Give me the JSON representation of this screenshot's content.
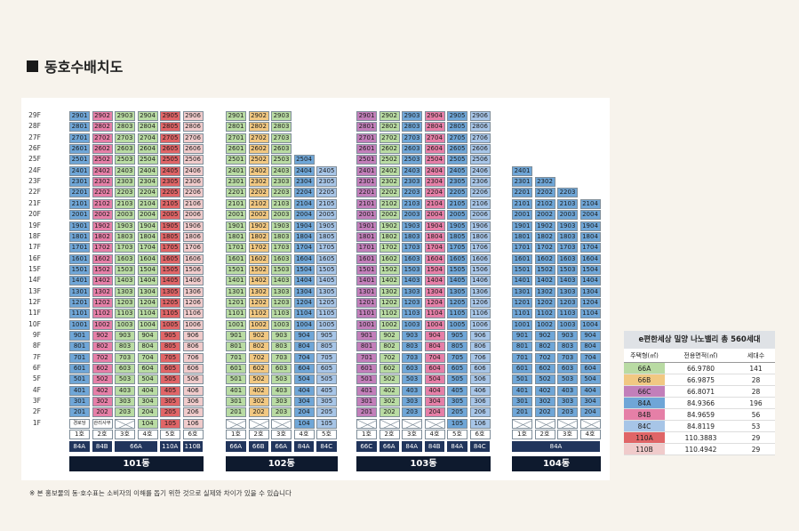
{
  "page_title": "동호수배치도",
  "footnote": "※ 본 홍보물의 동·호수표는 소비자의 이해를 돕기 위한 것으로 실제와 차이가 있을 수 있습니다",
  "colors": {
    "66A": "#b9dba3",
    "66B": "#f1c882",
    "66C": "#c27fba",
    "84A": "#6fa6d7",
    "84B": "#e57fa7",
    "84C": "#a7c5e7",
    "110A": "#e06567",
    "110B": "#f0cbcb"
  },
  "floor_labels": [
    "29F",
    "28F",
    "27F",
    "26F",
    "25F",
    "24F",
    "23F",
    "22F",
    "21F",
    "20F",
    "19F",
    "18F",
    "17F",
    "16F",
    "15F",
    "14F",
    "13F",
    "12F",
    "11F",
    "10F",
    "9F",
    "8F",
    "7F",
    "6F",
    "5F",
    "4F",
    "3F",
    "2F",
    "1F"
  ],
  "buildings": [
    {
      "name": "101동",
      "ho_labels": [
        "1호",
        "2호",
        "3호",
        "4호",
        "5호",
        "6호"
      ],
      "column_types": [
        "84A",
        "84B",
        "66A",
        "66A",
        "110A",
        "110B"
      ],
      "type_row": [
        {
          "label": "84A",
          "span": 1
        },
        {
          "label": "84B",
          "span": 1
        },
        {
          "label": "66A",
          "span": 2
        },
        {
          "label": "110A",
          "span": 1
        },
        {
          "label": "110B",
          "span": 1
        }
      ],
      "top_floors": [
        29,
        29,
        29,
        29,
        29,
        29
      ],
      "first_floor": [
        {
          "kind": "text",
          "value": "경로당"
        },
        {
          "kind": "text",
          "value": "관리사무소"
        },
        {
          "kind": "cross"
        },
        {
          "kind": "unit",
          "value": "104"
        },
        {
          "kind": "unit",
          "value": "105"
        },
        {
          "kind": "unit",
          "value": "106"
        }
      ]
    },
    {
      "name": "102동",
      "ho_labels": [
        "1호",
        "2호",
        "3호",
        "4호",
        "5호"
      ],
      "column_types": [
        "66A",
        "66B",
        "66A",
        "84A",
        "84C"
      ],
      "type_row": [
        {
          "label": "66A",
          "span": 1
        },
        {
          "label": "66B",
          "span": 1
        },
        {
          "label": "66A",
          "span": 1
        },
        {
          "label": "84A",
          "span": 1
        },
        {
          "label": "84C",
          "span": 1
        }
      ],
      "top_floors": [
        29,
        29,
        29,
        25,
        24
      ],
      "first_floor": [
        {
          "kind": "cross"
        },
        {
          "kind": "cross"
        },
        {
          "kind": "cross"
        },
        {
          "kind": "unit",
          "value": "104"
        },
        {
          "kind": "unit",
          "value": "105"
        }
      ]
    },
    {
      "name": "103동",
      "ho_labels": [
        "1호",
        "2호",
        "3호",
        "4호",
        "5호",
        "6호"
      ],
      "column_types": [
        "66C",
        "66A",
        "84A",
        "84B",
        "84A",
        "84C"
      ],
      "type_row": [
        {
          "label": "66C",
          "span": 1
        },
        {
          "label": "66A",
          "span": 1
        },
        {
          "label": "84A",
          "span": 1
        },
        {
          "label": "84B",
          "span": 1
        },
        {
          "label": "84A",
          "span": 1
        },
        {
          "label": "84C",
          "span": 1
        }
      ],
      "top_floors": [
        29,
        29,
        29,
        29,
        29,
        29
      ],
      "first_floor": [
        {
          "kind": "cross"
        },
        {
          "kind": "cross"
        },
        {
          "kind": "cross"
        },
        {
          "kind": "cross"
        },
        {
          "kind": "unit",
          "value": "105"
        },
        {
          "kind": "unit",
          "value": "106"
        }
      ]
    },
    {
      "name": "104동",
      "ho_labels": [
        "1호",
        "2호",
        "3호",
        "4호"
      ],
      "column_types": [
        "84A",
        "84A",
        "84A",
        "84A"
      ],
      "type_row": [
        {
          "label": "84A",
          "span": 4
        }
      ],
      "top_floors": [
        24,
        23,
        22,
        21
      ],
      "first_floor": [
        {
          "kind": "cross"
        },
        {
          "kind": "cross"
        },
        {
          "kind": "cross"
        },
        {
          "kind": "cross"
        }
      ]
    }
  ],
  "legend": {
    "title": "e편한세상 밀양 나노밸리  총 560세대",
    "headers": [
      "주택형(㎡)",
      "전용면적(㎡)",
      "세대수"
    ],
    "rows": [
      {
        "type": "66A",
        "area": "66.9780",
        "count": "141"
      },
      {
        "type": "66B",
        "area": "66.9875",
        "count": "28"
      },
      {
        "type": "66C",
        "area": "66.8071",
        "count": "28"
      },
      {
        "type": "84A",
        "area": "84.9366",
        "count": "196"
      },
      {
        "type": "84B",
        "area": "84.9659",
        "count": "56"
      },
      {
        "type": "84C",
        "area": "84.8119",
        "count": "53"
      },
      {
        "type": "110A",
        "area": "110.3883",
        "count": "29"
      },
      {
        "type": "110B",
        "area": "110.4942",
        "count": "29"
      }
    ]
  }
}
